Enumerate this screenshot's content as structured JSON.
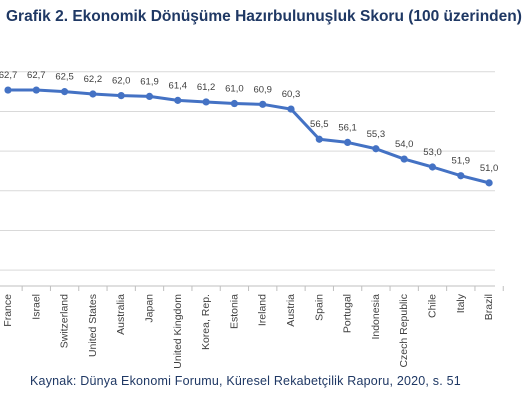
{
  "title": "Grafik 2. Ekonomik Dönüşüme Hazırbulunuşluk Skoru (100 üzerinden)",
  "source": "Kaynak: Dünya Ekonomi Forumu,  Küresel Rekabetçilik Raporu, 2020, s. 51",
  "colors": {
    "line": "#4472c4",
    "title": "#1f3864",
    "grid": "#d9d9d9",
    "axis": "#bfbfbf",
    "label": "#404040"
  },
  "chart_data": {
    "type": "line",
    "title": "Grafik 2. Ekonomik Dönüşüme Hazırbulunuşluk Skoru (100 üzerinden)",
    "xlabel": "",
    "ylabel": "",
    "categories": [
      "France",
      "Israel",
      "Switzerland",
      "United States",
      "Australia",
      "Japan",
      "United Kingdom",
      "Korea, Rep.",
      "Estonia",
      "Ireland",
      "Austria",
      "Spain",
      "Portugal",
      "Indonesia",
      "Czech Republic",
      "Chile",
      "Italy",
      "Brazil"
    ],
    "series": [
      {
        "values": [
          62.7,
          62.7,
          62.5,
          62.2,
          62.0,
          61.9,
          61.4,
          61.2,
          61.0,
          60.9,
          60.3,
          56.5,
          56.1,
          55.3,
          54.0,
          53.0,
          51.9,
          51.0
        ],
        "labels": [
          "62,7",
          "62,7",
          "62,5",
          "62,2",
          "62,0",
          "61,9",
          "61,4",
          "61,2",
          "61,0",
          "60,9",
          "60,3",
          "56,5",
          "56,1",
          "55,3",
          "54,0",
          "53,0",
          "51,9",
          "51,0"
        ]
      }
    ],
    "ylim": [
      38,
      68
    ],
    "grid": true,
    "legend": "none"
  }
}
